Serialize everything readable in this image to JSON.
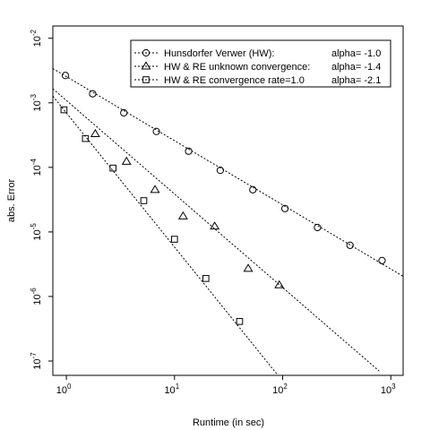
{
  "chart_data": {
    "type": "scatter",
    "title": "",
    "xlabel": "Runtime (in sec)",
    "ylabel": "abs. Error",
    "x_scale": "log10",
    "y_scale": "log10",
    "xlim": [
      0.75,
      1300
    ],
    "ylim": [
      6e-08,
      0.0155
    ],
    "x_ticks": [
      {
        "base": "10",
        "exp": "0",
        "value": 1
      },
      {
        "base": "10",
        "exp": "1",
        "value": 10
      },
      {
        "base": "10",
        "exp": "2",
        "value": 100
      },
      {
        "base": "10",
        "exp": "3",
        "value": 1000
      }
    ],
    "y_ticks": [
      {
        "base": "10",
        "exp": "-7",
        "value": 1e-07
      },
      {
        "base": "10",
        "exp": "-6",
        "value": 1e-06
      },
      {
        "base": "10",
        "exp": "-5",
        "value": 1e-05
      },
      {
        "base": "10",
        "exp": "-4",
        "value": 0.0001
      },
      {
        "base": "10",
        "exp": "-3",
        "value": 0.001
      },
      {
        "base": "10",
        "exp": "-2",
        "value": 0.01
      }
    ],
    "grid": false,
    "legend_position": "top-right",
    "series": [
      {
        "name": "Hunsdorfer Verwer (HW):",
        "alpha_label": "alpha= -1.0",
        "marker": "circle",
        "alpha": -1.0,
        "points": [
          [
            0.98,
            0.00265
          ],
          [
            1.75,
            0.00138
          ],
          [
            3.4,
            0.0007
          ],
          [
            6.8,
            0.00036
          ],
          [
            13.5,
            0.000178
          ],
          [
            26.5,
            9e-05
          ],
          [
            53,
            4.5e-05
          ],
          [
            105,
            2.3e-05
          ],
          [
            210,
            1.17e-05
          ],
          [
            420,
            6.2e-06
          ],
          [
            830,
            3.6e-06
          ]
        ],
        "fit": {
          "x0": 0.75,
          "y0": 0.0034,
          "x1": 1300,
          "y1": 2.05e-06
        }
      },
      {
        "name": "HW & RE unknown convergence:",
        "alpha_label": "alpha= -1.4",
        "marker": "triangle",
        "alpha": -1.4,
        "points": [
          [
            1.85,
            0.00033
          ],
          [
            3.6,
            0.000123
          ],
          [
            6.6,
            4.5e-05
          ],
          [
            12,
            1.75e-05
          ],
          [
            23.5,
            1.22e-05
          ],
          [
            48,
            2.7e-06
          ],
          [
            93,
            1.5e-06
          ]
        ],
        "fit": {
          "x0": 0.75,
          "y0": 0.00165,
          "x1": 780,
          "y1": 7e-08
        }
      },
      {
        "name": "HW & RE convergence rate=1.0",
        "alpha_label": "alpha= -2.1",
        "marker": "square",
        "alpha": -2.1,
        "points": [
          [
            0.95,
            0.00078
          ],
          [
            1.5,
            0.00028
          ],
          [
            2.7,
            9.75e-05
          ],
          [
            5.2,
            3.05e-05
          ],
          [
            10,
            7.7e-06
          ],
          [
            19.5,
            1.9e-06
          ],
          [
            40,
            4.1e-07
          ]
        ],
        "fit": {
          "x0": 0.75,
          "y0": 0.00127,
          "x1": 90,
          "y1": 6.06e-08
        }
      }
    ]
  }
}
